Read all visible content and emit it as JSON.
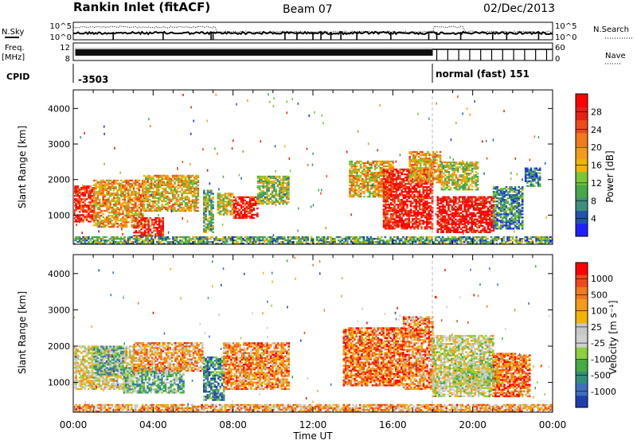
{
  "header": {
    "station": "Rankin Inlet (fitACF)",
    "beam": "Beam 07",
    "date": "02/Dec/2013"
  },
  "strip": {
    "nsky_label": "N.Sky",
    "nsky_ticks": [
      "10^5",
      "10^0"
    ],
    "nsearch_label": "N.Search",
    "nsearch_ticks": [
      "10^5",
      "10^0"
    ],
    "freq_label": "Freq.",
    "freq_unit": "[MHz]",
    "freq_ticks": [
      "12",
      "8"
    ],
    "nave_label": "Nave",
    "nave_ticks": [
      "60",
      "0"
    ],
    "cpid_label": "CPID",
    "cpid_segments": [
      {
        "text": "-3503",
        "start_h": 0.0
      },
      {
        "text": "normal (fast) 151",
        "start_h": 18.0
      }
    ]
  },
  "panels": [
    {
      "id": "power",
      "ylabel": "Slant Range [km]",
      "cbar_label": "Power [dB]"
    },
    {
      "id": "velocity",
      "ylabel": "Slant Range [km]",
      "cbar_label": "Velocity [m s⁻¹]"
    }
  ],
  "xaxis": {
    "label": "Time UT",
    "ticks": [
      "00:00",
      "04:00",
      "08:00",
      "12:00",
      "16:00",
      "20:00",
      "00:00"
    ]
  },
  "chart_data": [
    {
      "type": "heatmap",
      "title": "Power",
      "xlabel": "Time UT",
      "ylabel": "Slant Range [km]",
      "xlim": [
        0,
        24
      ],
      "ylim": [
        180,
        4500
      ],
      "yticks": [
        1000,
        2000,
        3000,
        4000
      ],
      "colorbar": {
        "label": "Power [dB]",
        "ticks": [
          "4",
          "8",
          "12",
          "16",
          "20",
          "24",
          "28"
        ],
        "range": [
          0,
          32
        ],
        "colors": [
          "#2020ff",
          "#2255aa",
          "#3f8f7f",
          "#46a848",
          "#7ac636",
          "#f1b400",
          "#f49a1c",
          "#f07a1c",
          "#ee4a1a",
          "#e81f14",
          "#ff0000"
        ]
      },
      "regions": [
        {
          "t0": 0.0,
          "t1": 1.0,
          "r0": 800,
          "r1": 1800,
          "level": 0.85
        },
        {
          "t0": 1.0,
          "t1": 3.5,
          "r0": 650,
          "r1": 2000,
          "level": 0.6
        },
        {
          "t0": 3.0,
          "t1": 4.5,
          "r0": 400,
          "r1": 900,
          "level": 0.85
        },
        {
          "t0": 3.5,
          "t1": 6.2,
          "r0": 1100,
          "r1": 2100,
          "level": 0.55
        },
        {
          "t0": 6.5,
          "t1": 7.0,
          "r0": 500,
          "r1": 1700,
          "level": 0.35
        },
        {
          "t0": 7.2,
          "t1": 8.0,
          "r0": 1000,
          "r1": 1600,
          "level": 0.5
        },
        {
          "t0": 8.0,
          "t1": 9.2,
          "r0": 900,
          "r1": 1500,
          "level": 0.9
        },
        {
          "t0": 9.2,
          "t1": 10.8,
          "r0": 1300,
          "r1": 2100,
          "level": 0.4
        },
        {
          "t0": 13.8,
          "t1": 16.0,
          "r0": 1500,
          "r1": 2500,
          "level": 0.55
        },
        {
          "t0": 15.5,
          "t1": 18.0,
          "r0": 600,
          "r1": 2300,
          "level": 0.9
        },
        {
          "t0": 16.8,
          "t1": 18.4,
          "r0": 1900,
          "r1": 2800,
          "level": 0.6
        },
        {
          "t0": 18.2,
          "t1": 21.0,
          "r0": 500,
          "r1": 1500,
          "level": 0.95
        },
        {
          "t0": 18.4,
          "t1": 20.2,
          "r0": 1700,
          "r1": 2500,
          "level": 0.45
        },
        {
          "t0": 21.0,
          "t1": 22.5,
          "r0": 600,
          "r1": 1800,
          "level": 0.25
        },
        {
          "t0": 22.6,
          "t1": 23.4,
          "r0": 1800,
          "r1": 2300,
          "level": 0.2
        },
        {
          "t0": 0.0,
          "t1": 24.0,
          "r0": 180,
          "r1": 400,
          "level": 0.3
        }
      ]
    },
    {
      "type": "heatmap",
      "title": "Velocity",
      "xlabel": "Time UT",
      "ylabel": "Slant Range [km]",
      "xlim": [
        0,
        24
      ],
      "ylim": [
        180,
        4500
      ],
      "yticks": [
        1000,
        2000,
        3000,
        4000
      ],
      "colorbar": {
        "label": "Velocity [m s⁻¹]",
        "ticks": [
          "1000",
          "500",
          "100",
          "25",
          "-25",
          "-100",
          "-500",
          "-1000"
        ],
        "colors": [
          "#1f3fb0",
          "#3e6ec0",
          "#2f8f7a",
          "#43ac43",
          "#8ccf3f",
          "#cfcfcf",
          "#c8c8c8",
          "#f1b400",
          "#f49a1c",
          "#f07a1c",
          "#ee4a1a",
          "#ff0000"
        ]
      },
      "regions": [
        {
          "t0": 0.0,
          "t1": 3.0,
          "r0": 800,
          "r1": 2000,
          "level": 0.55
        },
        {
          "t0": 1.0,
          "t1": 2.5,
          "r0": 1200,
          "r1": 2000,
          "level": 0.3
        },
        {
          "t0": 2.5,
          "t1": 5.5,
          "r0": 700,
          "r1": 1400,
          "level": 0.35
        },
        {
          "t0": 3.0,
          "t1": 6.5,
          "r0": 1300,
          "r1": 2100,
          "level": 0.7
        },
        {
          "t0": 6.5,
          "t1": 7.5,
          "r0": 500,
          "r1": 1700,
          "level": 0.2
        },
        {
          "t0": 7.5,
          "t1": 10.8,
          "r0": 800,
          "r1": 2100,
          "level": 0.75
        },
        {
          "t0": 13.5,
          "t1": 16.5,
          "r0": 900,
          "r1": 2500,
          "level": 0.8
        },
        {
          "t0": 16.5,
          "t1": 18.0,
          "r0": 800,
          "r1": 2800,
          "level": 0.75
        },
        {
          "t0": 18.0,
          "t1": 21.0,
          "r0": 600,
          "r1": 2300,
          "level": 0.5
        },
        {
          "t0": 19.0,
          "t1": 21.2,
          "r0": 900,
          "r1": 1500,
          "level": 0.45
        },
        {
          "t0": 21.0,
          "t1": 22.8,
          "r0": 600,
          "r1": 1800,
          "level": 0.8
        },
        {
          "t0": 0.0,
          "t1": 24.0,
          "r0": 180,
          "r1": 400,
          "level": 0.7
        }
      ]
    }
  ]
}
